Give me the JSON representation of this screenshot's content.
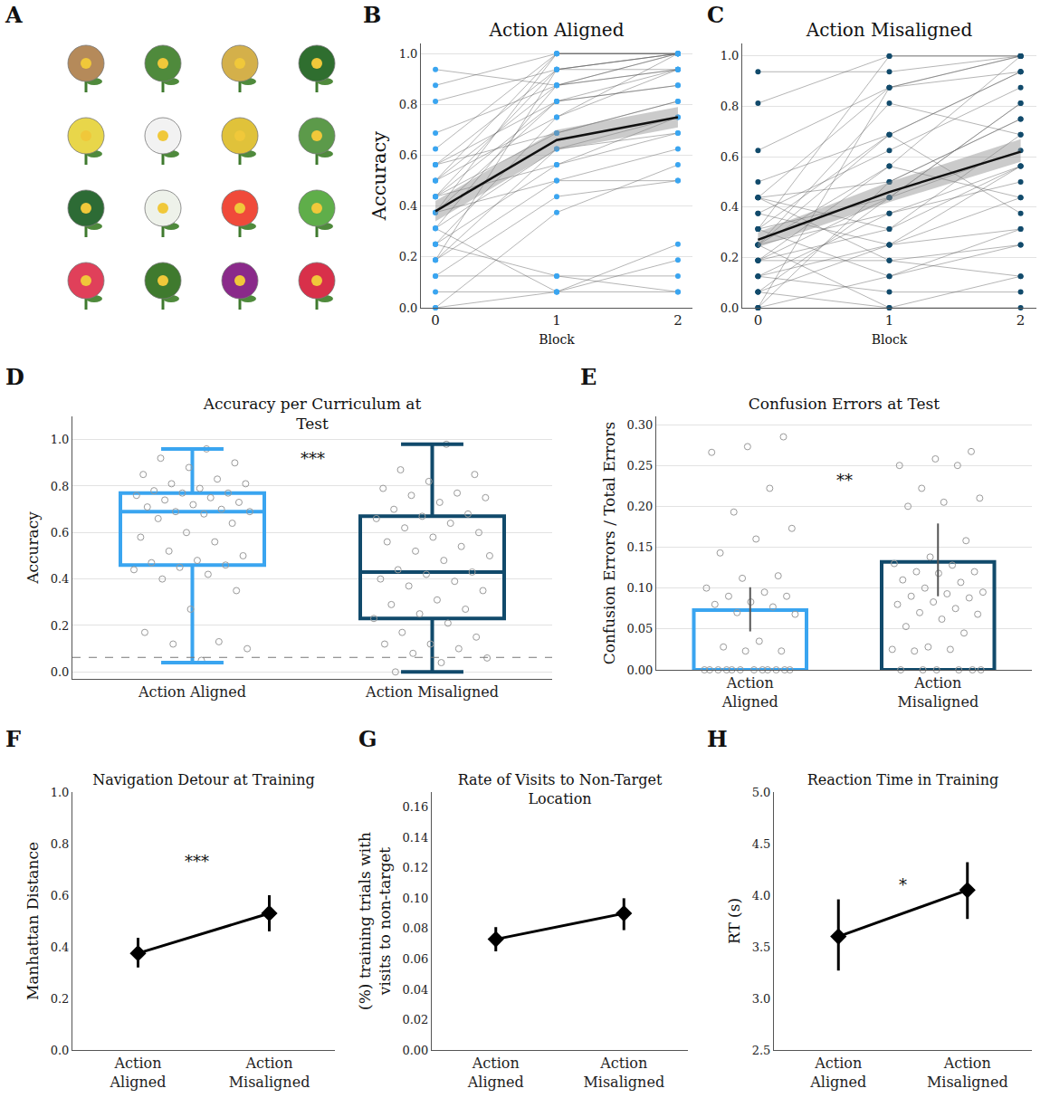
{
  "chart_data": [
    {
      "type": "image_grid",
      "panel": "A"
    },
    {
      "type": "line",
      "panel": "B",
      "title": "Action Aligned",
      "x_label": "Block",
      "y_label": "Accuracy",
      "color": "#3aa5f0",
      "grid": true,
      "x": [
        0,
        1,
        2
      ],
      "xlim": [
        -0.12,
        2.12
      ],
      "xticks": [
        0,
        1,
        2
      ],
      "ylim": [
        0,
        1.04
      ],
      "yticks": [
        {
          "value": 0,
          "label": "0.0"
        },
        {
          "value": 0.2,
          "label": "0.2"
        },
        {
          "value": 0.4,
          "label": "0.4"
        },
        {
          "value": 0.6,
          "label": "0.6"
        },
        {
          "value": 0.8,
          "label": "0.8"
        },
        {
          "value": 1,
          "label": "1.0"
        }
      ],
      "series": [
        {
          "values": [
            0.9375,
            0.875,
            1.0
          ]
        },
        {
          "values": [
            0.875,
            1.0,
            1.0
          ]
        },
        {
          "values": [
            0.8125,
            0.9375,
            1.0
          ]
        },
        {
          "values": [
            0.6875,
            0.875,
            0.9375
          ]
        },
        {
          "values": [
            0.625,
            1.0,
            1.0
          ]
        },
        {
          "values": [
            0.5625,
            0.9375,
            1.0
          ]
        },
        {
          "values": [
            0.5625,
            0.8125,
            0.875
          ]
        },
        {
          "values": [
            0.5,
            0.875,
            1.0
          ]
        },
        {
          "values": [
            0.5,
            0.75,
            0.9375
          ]
        },
        {
          "values": [
            0.4375,
            0.9375,
            1.0
          ]
        },
        {
          "values": [
            0.4375,
            0.6875,
            0.8125
          ]
        },
        {
          "values": [
            0.4375,
            0.5625,
            0.75
          ]
        },
        {
          "values": [
            0.375,
            1.0,
            1.0
          ]
        },
        {
          "values": [
            0.375,
            0.8125,
            0.875
          ]
        },
        {
          "values": [
            0.3125,
            0.625,
            0.6875
          ]
        },
        {
          "values": [
            0.3125,
            0.875,
            0.9375
          ]
        },
        {
          "values": [
            0.25,
            0.5625,
            0.6875
          ]
        },
        {
          "values": [
            0.25,
            0.75,
            1.0
          ]
        },
        {
          "values": [
            0.25,
            0.125,
            0.0625
          ]
        },
        {
          "values": [
            0.1875,
            0.5,
            0.625
          ]
        },
        {
          "values": [
            0.1875,
            0.9375,
            0.9375
          ]
        },
        {
          "values": [
            0.125,
            0.125,
            0.125
          ]
        },
        {
          "values": [
            0.125,
            0.4375,
            0.5
          ]
        },
        {
          "values": [
            0.0625,
            0.0625,
            0.25
          ]
        },
        {
          "values": [
            0.0,
            0.0625,
            0.0625
          ]
        },
        {
          "values": [
            0.0,
            0.375,
            0.5625
          ]
        },
        {
          "values": [
            0.5,
            1.0,
            1.0
          ]
        },
        {
          "values": [
            0.3125,
            0.0625,
            0.1875
          ]
        },
        {
          "values": [
            0.4375,
            0.8125,
            0.9375
          ]
        },
        {
          "values": [
            0.5625,
            0.6875,
            0.8125
          ]
        },
        {
          "values": [
            0.1875,
            0.625,
            0.75
          ]
        },
        {
          "values": [
            0.375,
            0.5,
            0.5
          ]
        }
      ],
      "mean": {
        "values": [
          0.38,
          0.66,
          0.75
        ],
        "lower": [
          0.34,
          0.62,
          0.71
        ],
        "upper": [
          0.42,
          0.7,
          0.79
        ]
      }
    },
    {
      "type": "line",
      "panel": "C",
      "title": "Action Misaligned",
      "x_label": "Block",
      "color": "#114a6b",
      "grid": true,
      "x": [
        0,
        1,
        2
      ],
      "xlim": [
        -0.12,
        2.12
      ],
      "xticks": [
        0,
        1,
        2
      ],
      "ylim": [
        0,
        1.05
      ],
      "yticks": [
        {
          "value": 0,
          "label": "0.0"
        },
        {
          "value": 0.2,
          "label": "0.2"
        },
        {
          "value": 0.4,
          "label": "0.4"
        },
        {
          "value": 0.6,
          "label": "0.6"
        },
        {
          "value": 0.8,
          "label": "0.8"
        },
        {
          "value": 1,
          "label": "1.0"
        }
      ],
      "series": [
        {
          "values": [
            0.9375,
            0.9375,
            1.0
          ]
        },
        {
          "values": [
            0.8125,
            1.0,
            1.0
          ]
        },
        {
          "values": [
            0.625,
            0.875,
            1.0
          ]
        },
        {
          "values": [
            0.5,
            0.6875,
            0.9375
          ]
        },
        {
          "values": [
            0.4375,
            0.875,
            1.0
          ]
        },
        {
          "values": [
            0.4375,
            0.5,
            0.75
          ]
        },
        {
          "values": [
            0.4375,
            0.3125,
            0.5625
          ]
        },
        {
          "values": [
            0.375,
            0.625,
            0.875
          ]
        },
        {
          "values": [
            0.375,
            0.25,
            0.3125
          ]
        },
        {
          "values": [
            0.3125,
            1.0,
            1.0
          ]
        },
        {
          "values": [
            0.3125,
            0.4375,
            0.625
          ]
        },
        {
          "values": [
            0.3125,
            0.125,
            0.25
          ]
        },
        {
          "values": [
            0.25,
            0.6875,
            0.9375
          ]
        },
        {
          "values": [
            0.25,
            0.375,
            0.5625
          ]
        },
        {
          "values": [
            0.25,
            0.0,
            0.125
          ]
        },
        {
          "values": [
            0.25,
            0.8125,
            0.6875
          ]
        },
        {
          "values": [
            0.1875,
            0.4375,
            0.8125
          ]
        },
        {
          "values": [
            0.1875,
            0.1875,
            0.25
          ]
        },
        {
          "values": [
            0.1875,
            0.5625,
            0.4375
          ]
        },
        {
          "values": [
            0.125,
            0.0625,
            0.0625
          ]
        },
        {
          "values": [
            0.125,
            0.375,
            0.5
          ]
        },
        {
          "values": [
            0.0625,
            0.25,
            0.5625
          ]
        },
        {
          "values": [
            0.0625,
            0.0,
            0.0
          ]
        },
        {
          "values": [
            0.0,
            0.125,
            0.3125
          ]
        },
        {
          "values": [
            0.0,
            0.875,
            0.9375
          ]
        },
        {
          "values": [
            0.0,
            0.5,
            0.75
          ]
        },
        {
          "values": [
            0.4375,
            0.1875,
            0.125
          ]
        },
        {
          "values": [
            0.3125,
            0.6875,
            0.375
          ]
        },
        {
          "values": [
            0.1875,
            0.3125,
            0.6875
          ]
        },
        {
          "values": [
            0.0625,
            0.4375,
            0.8125
          ]
        },
        {
          "values": [
            0.125,
            0.25,
            0.4375
          ]
        },
        {
          "values": [
            0.25,
            0.5625,
            1.0
          ]
        }
      ],
      "mean": {
        "values": [
          0.27,
          0.46,
          0.62
        ],
        "lower": [
          0.24,
          0.42,
          0.58
        ],
        "upper": [
          0.3,
          0.5,
          0.67
        ]
      }
    },
    {
      "type": "box",
      "panel": "D",
      "title": "Accuracy per Curriculum at Test",
      "y_label": "Accuracy",
      "grid": true,
      "categories": [
        "Action Aligned",
        "Action Misaligned"
      ],
      "colors": [
        "#3aa5f0",
        "#114a6b"
      ],
      "boxes": [
        {
          "min": 0.04,
          "q1": 0.46,
          "median": 0.69,
          "q3": 0.77,
          "max": 0.96
        },
        {
          "min": 0.0,
          "q1": 0.23,
          "median": 0.43,
          "q3": 0.67,
          "max": 0.98
        }
      ],
      "points": [
        [
          0.96,
          0.92,
          0.9,
          0.88,
          0.85,
          0.83,
          0.81,
          0.81,
          0.79,
          0.78,
          0.77,
          0.77,
          0.76,
          0.75,
          0.74,
          0.73,
          0.72,
          0.71,
          0.7,
          0.69,
          0.69,
          0.68,
          0.66,
          0.64,
          0.6,
          0.58,
          0.56,
          0.52,
          0.5,
          0.48,
          0.47,
          0.46,
          0.45,
          0.44,
          0.42,
          0.4,
          0.35,
          0.27,
          0.17,
          0.13,
          0.12,
          0.1,
          0.05
        ],
        [
          0.98,
          0.87,
          0.85,
          0.82,
          0.79,
          0.77,
          0.76,
          0.75,
          0.73,
          0.7,
          0.68,
          0.67,
          0.66,
          0.64,
          0.62,
          0.6,
          0.58,
          0.56,
          0.54,
          0.52,
          0.5,
          0.48,
          0.44,
          0.43,
          0.42,
          0.4,
          0.39,
          0.37,
          0.35,
          0.31,
          0.29,
          0.27,
          0.25,
          0.23,
          0.21,
          0.17,
          0.15,
          0.12,
          0.12,
          0.1,
          0.08,
          0.06,
          0.04,
          0.0
        ]
      ],
      "reference_line": 0.0625,
      "annotations": [
        {
          "text": "***",
          "x": 0.5,
          "y": 0.92
        }
      ],
      "ylim": [
        -0.03,
        1.1
      ],
      "yticks": [
        {
          "value": 0,
          "label": "0.0"
        },
        {
          "value": 0.2,
          "label": "0.2"
        },
        {
          "value": 0.4,
          "label": "0.4"
        },
        {
          "value": 0.6,
          "label": "0.6"
        },
        {
          "value": 0.8,
          "label": "0.8"
        },
        {
          "value": 1,
          "label": "1.0"
        }
      ]
    },
    {
      "type": "bar",
      "panel": "E",
      "title": "Confusion Errors at Test",
      "y_label": "Confusion Errors / Total Errors",
      "grid": true,
      "categories": [
        "Action Aligned",
        "Action Misaligned"
      ],
      "colors": [
        "#3aa5f0",
        "#114a6b"
      ],
      "values": [
        0.073,
        0.132
      ],
      "error_low": [
        0.047,
        0.09
      ],
      "error_high": [
        0.101,
        0.179
      ],
      "points": [
        [
          0.285,
          0.273,
          0.266,
          0.222,
          0.193,
          0.173,
          0.16,
          0.143,
          0.115,
          0.112,
          0.1,
          0.095,
          0.09,
          0.09,
          0.083,
          0.08,
          0.077,
          0.07,
          0.068,
          0.035,
          0.028,
          0.023,
          0.023,
          0,
          0,
          0,
          0,
          0,
          0,
          0,
          0,
          0,
          0,
          0,
          0
        ],
        [
          0.267,
          0.258,
          0.25,
          0.25,
          0.222,
          0.21,
          0.205,
          0.2,
          0.158,
          0.138,
          0.13,
          0.128,
          0.12,
          0.12,
          0.118,
          0.11,
          0.107,
          0.1,
          0.095,
          0.093,
          0.09,
          0.088,
          0.083,
          0.08,
          0.075,
          0.07,
          0.068,
          0.062,
          0.053,
          0.045,
          0.028,
          0.025,
          0.025,
          0.023,
          0,
          0,
          0,
          0,
          0,
          0
        ]
      ],
      "annotations": [
        {
          "text": "**",
          "x": 0.5,
          "y": 0.232
        }
      ],
      "ylim": [
        0,
        0.31
      ],
      "yticks": [
        {
          "value": 0,
          "label": "0.00"
        },
        {
          "value": 0.05,
          "label": "0.05"
        },
        {
          "value": 0.1,
          "label": "0.10"
        },
        {
          "value": 0.15,
          "label": "0.15"
        },
        {
          "value": 0.2,
          "label": "0.20"
        },
        {
          "value": 0.25,
          "label": "0.25"
        },
        {
          "value": 0.3,
          "label": "0.30"
        }
      ]
    },
    {
      "type": "point",
      "panel": "F",
      "title": "Navigation Detour at Training",
      "y_label": "Manhattan Distance",
      "grid": false,
      "marker": "diamond",
      "color": "#000000",
      "categories": [
        "Action Aligned",
        "Action Misaligned"
      ],
      "values": [
        0.375,
        0.53
      ],
      "error_low": [
        0.32,
        0.46
      ],
      "error_high": [
        0.435,
        0.6
      ],
      "annotations": [
        {
          "text": "***",
          "x": 0.45,
          "y": 0.73
        }
      ],
      "ylim": [
        0,
        1.0
      ],
      "yticks": [
        {
          "value": 0,
          "label": "0.0"
        },
        {
          "value": 0.2,
          "label": "0.2"
        },
        {
          "value": 0.4,
          "label": "0.4"
        },
        {
          "value": 0.6,
          "label": "0.6"
        },
        {
          "value": 0.8,
          "label": "0.8"
        },
        {
          "value": 1,
          "label": "1.0"
        }
      ]
    },
    {
      "type": "point",
      "panel": "G",
      "title": "Rate of Visits to Non-Target Location",
      "y_label": "(%) training trials with visits to non-target",
      "grid": false,
      "marker": "diamond",
      "color": "#000000",
      "categories": [
        "Action Aligned",
        "Action Misaligned"
      ],
      "values": [
        0.073,
        0.09
      ],
      "error_low": [
        0.065,
        0.079
      ],
      "error_high": [
        0.081,
        0.1
      ],
      "ylim": [
        0,
        0.17
      ],
      "yticks": [
        {
          "value": 0,
          "label": "0.00"
        },
        {
          "value": 0.02,
          "label": "0.02"
        },
        {
          "value": 0.04,
          "label": "0.04"
        },
        {
          "value": 0.06,
          "label": "0.06"
        },
        {
          "value": 0.08,
          "label": "0.08"
        },
        {
          "value": 0.1,
          "label": "0.10"
        },
        {
          "value": 0.12,
          "label": "0.12"
        },
        {
          "value": 0.14,
          "label": "0.14"
        },
        {
          "value": 0.16,
          "label": "0.16"
        }
      ]
    },
    {
      "type": "point",
      "panel": "H",
      "title": "Reaction Time in Training",
      "y_label": "RT (s)",
      "grid": false,
      "marker": "diamond",
      "color": "#000000",
      "categories": [
        "Action Aligned",
        "Action Misaligned"
      ],
      "values": [
        3.6,
        4.05
      ],
      "error_low": [
        3.27,
        3.77
      ],
      "error_high": [
        3.96,
        4.32
      ],
      "annotations": [
        {
          "text": "*",
          "x": 0.5,
          "y": 4.1
        }
      ],
      "ylim": [
        2.5,
        5.0
      ],
      "yticks": [
        2.5,
        {
          "value": 3,
          "label": "3.0"
        },
        3.5,
        {
          "value": 4,
          "label": "4.0"
        },
        4.5,
        {
          "value": 5,
          "label": "5.0"
        }
      ]
    }
  ]
}
